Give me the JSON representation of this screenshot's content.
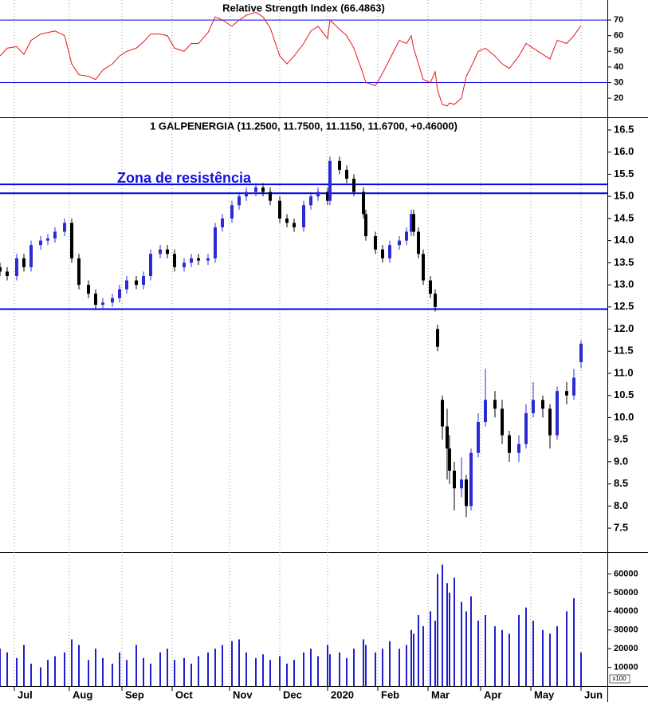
{
  "chart_data": [
    {
      "type": "line",
      "title": "Relative Strength Index (66.4863)",
      "color": "#e8161b",
      "line_color": "#0000ee",
      "ylim": [
        7.8,
        82.8
      ],
      "yticks": [
        20,
        30,
        40,
        50,
        60,
        70
      ],
      "hlines": [
        70,
        30
      ],
      "xlim": [
        0,
        254
      ],
      "x": [
        0,
        3,
        7,
        10,
        13,
        17,
        20,
        23,
        27,
        30,
        33,
        37,
        40,
        43,
        47,
        50,
        53,
        57,
        60,
        63,
        67,
        70,
        73,
        77,
        80,
        83,
        87,
        90,
        93,
        97,
        100,
        103,
        107,
        110,
        113,
        117,
        120,
        123,
        127,
        130,
        133,
        137,
        138,
        142,
        145,
        148,
        152,
        153,
        157,
        160,
        163,
        167,
        170,
        172,
        173,
        175,
        177,
        180,
        182,
        183,
        185,
        187,
        188,
        190,
        193,
        195,
        197,
        200,
        203,
        207,
        210,
        213,
        217,
        220,
        223,
        227,
        230,
        233,
        237,
        240,
        243
      ],
      "values": [
        47,
        52,
        53,
        48,
        57,
        61,
        62,
        63,
        60,
        42,
        35,
        34,
        32,
        38,
        42,
        47,
        50,
        52,
        56,
        61,
        61,
        60,
        52,
        50,
        55,
        55,
        62,
        72,
        70,
        66,
        70,
        73,
        75,
        72,
        65,
        47,
        42,
        47,
        55,
        63,
        66,
        58,
        70,
        64,
        60,
        52,
        35,
        30,
        28,
        36,
        45,
        57,
        55,
        60,
        52,
        42,
        32,
        30,
        37,
        25,
        16,
        15,
        17,
        16,
        20,
        34,
        40,
        50,
        52,
        47,
        42,
        39,
        47,
        55,
        52,
        48,
        45,
        57,
        55,
        60,
        66.4863
      ]
    },
    {
      "type": "candlestick",
      "title": "1 GALPENERGIA (11.2500, 11.7500, 11.1150, 11.6700, +0.46000)",
      "annotation": "Zona de resistência",
      "up_color": "#2b2bd6",
      "down_color": "#000000",
      "line_color": "#0000ee",
      "ylim": [
        6.96,
        16.77
      ],
      "yticks": [
        7.5,
        {
          "value": 8,
          "label": "8.0"
        },
        8.5,
        {
          "value": 9,
          "label": "9.0"
        },
        9.5,
        {
          "value": 10,
          "label": "10.0"
        },
        10.5,
        {
          "value": 11,
          "label": "11.0"
        },
        11.5,
        {
          "value": 12,
          "label": "12.0"
        },
        12.5,
        {
          "value": 13,
          "label": "13.0"
        },
        13.5,
        {
          "value": 14,
          "label": "14.0"
        },
        14.5,
        {
          "value": 15,
          "label": "15.0"
        },
        15.5,
        {
          "value": 16,
          "label": "16.0"
        },
        16.5
      ],
      "hlines": [
        15.27,
        15.07,
        12.45
      ],
      "xlim": [
        0,
        254
      ],
      "x": [
        0,
        3,
        7,
        10,
        13,
        17,
        20,
        23,
        27,
        30,
        33,
        37,
        40,
        43,
        47,
        50,
        53,
        57,
        60,
        63,
        67,
        70,
        73,
        77,
        80,
        83,
        87,
        90,
        93,
        97,
        100,
        103,
        107,
        110,
        113,
        117,
        120,
        123,
        127,
        130,
        133,
        137,
        138,
        142,
        145,
        148,
        152,
        153,
        157,
        160,
        163,
        167,
        170,
        172,
        173,
        175,
        177,
        180,
        182,
        183,
        185,
        187,
        188,
        190,
        193,
        195,
        197,
        200,
        203,
        207,
        210,
        213,
        217,
        220,
        223,
        227,
        230,
        233,
        237,
        240,
        243
      ],
      "open": [
        13.4,
        13.3,
        13.2,
        13.6,
        13.4,
        13.9,
        14.0,
        14.05,
        14.2,
        14.4,
        13.6,
        13.0,
        12.8,
        12.55,
        12.6,
        12.7,
        12.9,
        13.1,
        13.0,
        13.2,
        13.7,
        13.8,
        13.7,
        13.4,
        13.5,
        13.6,
        13.55,
        13.6,
        14.3,
        14.5,
        14.8,
        15.0,
        15.1,
        15.2,
        15.1,
        14.9,
        14.5,
        14.4,
        14.3,
        14.8,
        15.0,
        15.1,
        14.9,
        15.8,
        15.6,
        15.4,
        15.1,
        14.6,
        14.1,
        13.8,
        13.6,
        13.9,
        14.0,
        14.2,
        14.6,
        14.2,
        13.7,
        13.1,
        12.8,
        12.0,
        10.4,
        9.8,
        9.3,
        8.8,
        8.4,
        8.6,
        8.0,
        9.2,
        9.9,
        10.4,
        10.2,
        9.6,
        9.2,
        9.4,
        10.1,
        10.4,
        10.2,
        9.6,
        10.6,
        10.5,
        11.25
      ],
      "high": [
        13.5,
        13.4,
        13.7,
        13.7,
        14.0,
        14.1,
        14.15,
        14.3,
        14.5,
        14.5,
        13.7,
        13.1,
        12.9,
        12.7,
        12.8,
        13.0,
        13.2,
        13.2,
        13.3,
        13.8,
        13.9,
        13.9,
        13.8,
        13.6,
        13.7,
        13.7,
        13.7,
        14.4,
        14.6,
        14.9,
        15.1,
        15.2,
        15.3,
        15.3,
        15.2,
        15.0,
        14.6,
        14.5,
        14.9,
        15.1,
        15.2,
        15.2,
        15.9,
        15.9,
        15.7,
        15.5,
        15.2,
        14.7,
        14.2,
        13.9,
        14.0,
        14.1,
        14.3,
        14.7,
        14.7,
        14.3,
        13.8,
        13.2,
        12.9,
        12.1,
        10.5,
        10.2,
        9.6,
        9.0,
        9.1,
        8.7,
        9.3,
        10.1,
        11.1,
        10.6,
        10.4,
        9.7,
        9.6,
        10.3,
        10.8,
        10.5,
        10.3,
        10.7,
        10.8,
        11.1,
        11.75
      ],
      "low": [
        13.2,
        13.1,
        13.1,
        13.3,
        13.3,
        13.8,
        13.9,
        13.95,
        14.1,
        13.5,
        12.9,
        12.7,
        12.45,
        12.45,
        12.5,
        12.6,
        12.8,
        12.9,
        12.9,
        13.1,
        13.6,
        13.6,
        13.3,
        13.3,
        13.4,
        13.45,
        13.45,
        13.5,
        14.2,
        14.4,
        14.7,
        14.9,
        15.0,
        15.0,
        14.8,
        14.4,
        14.3,
        14.2,
        14.2,
        14.7,
        14.9,
        14.8,
        14.8,
        15.5,
        15.3,
        15.0,
        14.5,
        14.0,
        13.7,
        13.5,
        13.5,
        13.8,
        13.9,
        14.1,
        14.1,
        13.6,
        13.0,
        12.7,
        12.4,
        11.5,
        9.5,
        8.6,
        8.5,
        7.9,
        8.2,
        7.75,
        7.9,
        9.1,
        9.8,
        10.0,
        9.4,
        9.0,
        9.0,
        9.3,
        10.0,
        10.0,
        9.3,
        9.5,
        10.3,
        10.4,
        11.115
      ],
      "close": [
        13.3,
        13.2,
        13.6,
        13.4,
        13.9,
        14.0,
        14.05,
        14.2,
        14.4,
        13.6,
        13.0,
        12.8,
        12.55,
        12.6,
        12.7,
        12.9,
        13.1,
        13.0,
        13.2,
        13.7,
        13.8,
        13.7,
        13.4,
        13.5,
        13.6,
        13.55,
        13.6,
        14.3,
        14.5,
        14.8,
        15.0,
        15.1,
        15.2,
        15.1,
        14.9,
        14.5,
        14.4,
        14.3,
        14.8,
        15.0,
        15.1,
        14.9,
        15.8,
        15.6,
        15.4,
        15.1,
        14.6,
        14.1,
        13.8,
        13.6,
        13.9,
        14.0,
        14.2,
        14.6,
        14.2,
        13.7,
        13.1,
        12.8,
        12.5,
        11.6,
        9.8,
        9.3,
        8.8,
        8.4,
        8.6,
        8.0,
        9.2,
        9.9,
        10.4,
        10.2,
        9.6,
        9.2,
        9.4,
        10.1,
        10.4,
        10.2,
        9.6,
        10.6,
        10.5,
        10.9,
        11.67
      ]
    },
    {
      "type": "bar",
      "color": "#1f1fd0",
      "unit": "x100",
      "ylim": [
        0,
        71300
      ],
      "yticks": [
        10000,
        20000,
        30000,
        40000,
        50000,
        60000
      ],
      "xlim": [
        0,
        254
      ],
      "xticks": [
        {
          "value": 6,
          "label": "Jul"
        },
        {
          "value": 29,
          "label": "Aug"
        },
        {
          "value": 51,
          "label": "Sep"
        },
        {
          "value": 72,
          "label": "Oct"
        },
        {
          "value": 96,
          "label": "Nov"
        },
        {
          "value": 117,
          "label": "Dec"
        },
        {
          "value": 137,
          "label": "2020"
        },
        {
          "value": 158,
          "label": "Feb"
        },
        {
          "value": 179,
          "label": "Mar"
        },
        {
          "value": 201,
          "label": "Apr"
        },
        {
          "value": 222,
          "label": "May"
        },
        {
          "value": 243,
          "label": "Jun"
        }
      ],
      "x": [
        0,
        3,
        7,
        10,
        13,
        17,
        20,
        23,
        27,
        30,
        33,
        37,
        40,
        43,
        47,
        50,
        53,
        57,
        60,
        63,
        67,
        70,
        73,
        77,
        80,
        83,
        87,
        90,
        93,
        97,
        100,
        103,
        107,
        110,
        113,
        117,
        120,
        123,
        127,
        130,
        133,
        137,
        138,
        142,
        145,
        148,
        152,
        153,
        157,
        160,
        163,
        167,
        170,
        172,
        173,
        175,
        177,
        180,
        182,
        183,
        185,
        187,
        188,
        190,
        193,
        195,
        197,
        200,
        203,
        207,
        210,
        213,
        217,
        220,
        223,
        227,
        230,
        233,
        237,
        240,
        243
      ],
      "values": [
        20000,
        18000,
        15000,
        22000,
        12000,
        10000,
        14000,
        16000,
        18000,
        25000,
        22000,
        14000,
        20000,
        15000,
        12000,
        18000,
        14000,
        22000,
        15000,
        12000,
        18000,
        20000,
        14000,
        15000,
        12000,
        16000,
        18000,
        20000,
        22000,
        24000,
        25000,
        18000,
        15000,
        17000,
        14000,
        16000,
        12000,
        14000,
        18000,
        20000,
        16000,
        22000,
        17000,
        18000,
        15000,
        20000,
        25000,
        22000,
        18000,
        20000,
        24000,
        20000,
        22000,
        30000,
        28000,
        38000,
        32000,
        40000,
        35000,
        60000,
        65000,
        55000,
        50000,
        58000,
        45000,
        40000,
        48000,
        35000,
        38000,
        32000,
        30000,
        28000,
        38000,
        42000,
        35000,
        30000,
        28000,
        32000,
        40000,
        47000,
        18000
      ]
    }
  ]
}
